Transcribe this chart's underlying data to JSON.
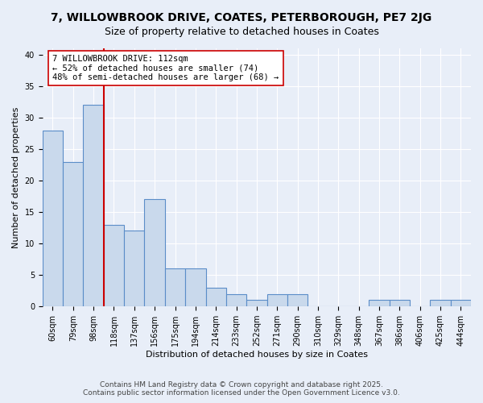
{
  "title_line1": "7, WILLOWBROOK DRIVE, COATES, PETERBOROUGH, PE7 2JG",
  "title_line2": "Size of property relative to detached houses in Coates",
  "xlabel": "Distribution of detached houses by size in Coates",
  "ylabel": "Number of detached properties",
  "categories": [
    "60sqm",
    "79sqm",
    "98sqm",
    "118sqm",
    "137sqm",
    "156sqm",
    "175sqm",
    "194sqm",
    "214sqm",
    "233sqm",
    "252sqm",
    "271sqm",
    "290sqm",
    "310sqm",
    "329sqm",
    "348sqm",
    "367sqm",
    "386sqm",
    "406sqm",
    "425sqm",
    "444sqm"
  ],
  "values": [
    28,
    23,
    32,
    13,
    12,
    17,
    6,
    6,
    3,
    2,
    1,
    2,
    2,
    0,
    0,
    0,
    1,
    1,
    0,
    1,
    1
  ],
  "bar_color": "#c9d9ec",
  "bar_edge_color": "#5b8dc8",
  "reference_line_index": 3,
  "reference_line_color": "#cc0000",
  "annotation_line1": "7 WILLOWBROOK DRIVE: 112sqm",
  "annotation_line2": "← 52% of detached houses are smaller (74)",
  "annotation_line3": "48% of semi-detached houses are larger (68) →",
  "annotation_box_color": "#ffffff",
  "annotation_box_edge": "#cc0000",
  "ylim_max": 41,
  "yticks": [
    0,
    5,
    10,
    15,
    20,
    25,
    30,
    35,
    40
  ],
  "background_color": "#e8eef8",
  "grid_color": "#ffffff",
  "footer_line1": "Contains HM Land Registry data © Crown copyright and database right 2025.",
  "footer_line2": "Contains public sector information licensed under the Open Government Licence v3.0.",
  "title_fontsize": 10,
  "subtitle_fontsize": 9,
  "axis_label_fontsize": 8,
  "tick_fontsize": 7,
  "annotation_fontsize": 7.5,
  "footer_fontsize": 6.5
}
